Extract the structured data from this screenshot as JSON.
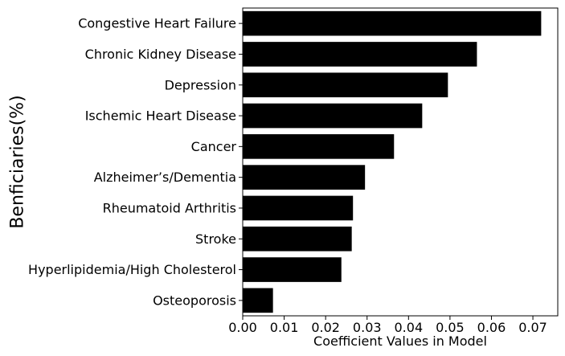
{
  "chart_data": {
    "type": "bar",
    "orientation": "horizontal",
    "title": "",
    "xlabel": "Coefficient Values in Model",
    "ylabel": "Benficiaries(%)",
    "xlim": [
      0,
      0.076
    ],
    "xticks": [
      0.0,
      0.01,
      0.02,
      0.03,
      0.04,
      0.05,
      0.06,
      0.07
    ],
    "xtick_labels": [
      "0.00",
      "0.01",
      "0.02",
      "0.03",
      "0.04",
      "0.05",
      "0.06",
      "0.07"
    ],
    "grid": false,
    "legend": "none",
    "bar_color": "#000000",
    "categories": [
      "Congestive Heart Failure",
      "Chronic Kidney Disease",
      "Depression",
      "Ischemic Heart Disease",
      "Cancer",
      "Alzheimer’s/Dementia",
      "Rheumatoid Arthritis",
      "Stroke",
      "Hyperlipidemia/High Cholesterol",
      "Osteoporosis"
    ],
    "values": [
      0.072,
      0.0565,
      0.0495,
      0.0433,
      0.0365,
      0.0295,
      0.0266,
      0.0263,
      0.0238,
      0.0073
    ]
  }
}
